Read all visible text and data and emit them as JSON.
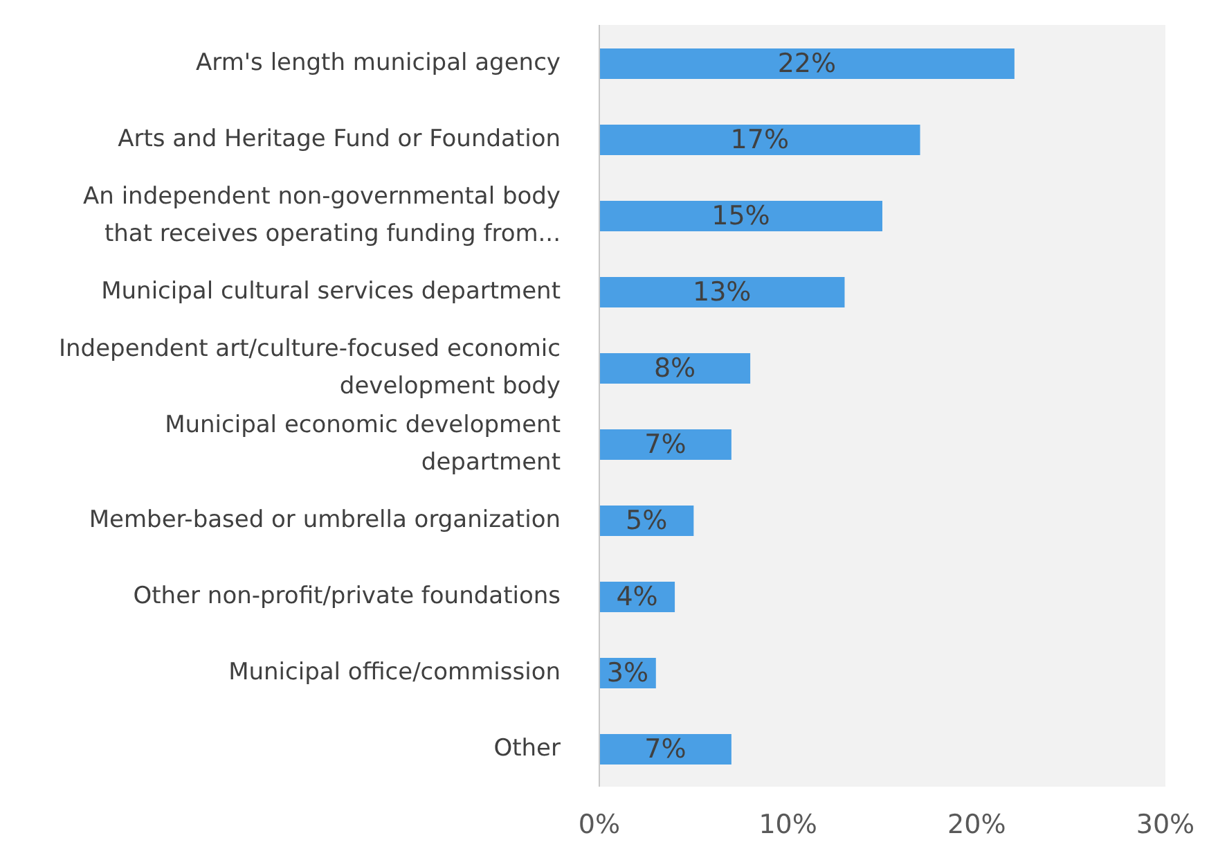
{
  "chart_data": {
    "type": "bar",
    "orientation": "horizontal",
    "categories": [
      "Arm's length municipal agency",
      "Arts and Heritage Fund or Foundation",
      "An independent non-governmental body that receives operating funding from...",
      "Municipal cultural services department",
      "Independent art/culture-focused economic development body",
      "Municipal economic development department",
      "Member-based or umbrella organization",
      "Other non-profit/private foundations",
      "Municipal office/commission",
      "Other"
    ],
    "values": [
      22,
      17,
      15,
      13,
      8,
      7,
      5,
      4,
      3,
      7
    ],
    "value_labels": [
      "22%",
      "17%",
      "15%",
      "13%",
      "8%",
      "7%",
      "5%",
      "4%",
      "3%",
      "7%"
    ],
    "color": "#4a9fe5",
    "xlim": [
      0,
      30
    ],
    "xticks": [
      {
        "value": 0,
        "label": "0%"
      },
      {
        "value": 10,
        "label": "10%"
      },
      {
        "value": 20,
        "label": "20%"
      },
      {
        "value": 30,
        "label": "30%"
      }
    ]
  }
}
